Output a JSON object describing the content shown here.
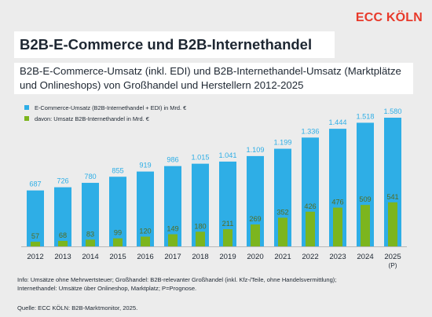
{
  "header": {
    "brand": "ECC KÖLN",
    "title": "B2B-E-Commerce und B2B-Internethandel",
    "subtitle": "B2B-E-Commerce-Umsatz (inkl. EDI) und B2B-Internethandel-Umsatz (Marktplätze und Onlineshops) von Großhandel und Herstellern 2012-2025"
  },
  "colors": {
    "ecommerce": "#2eaee6",
    "internethandel": "#7cb51e",
    "label_ecommerce": "#2eaee6",
    "label_internethandel": "#556b1c"
  },
  "chart_data": {
    "type": "bar",
    "categories": [
      "2012",
      "2013",
      "2014",
      "2015",
      "2016",
      "2017",
      "2018",
      "2019",
      "2020",
      "2021",
      "2022",
      "2023",
      "2024",
      "2025"
    ],
    "category_notes": [
      "",
      "",
      "",
      "",
      "",
      "",
      "",
      "",
      "",
      "",
      "",
      "",
      "",
      "(P)"
    ],
    "series": [
      {
        "name": "E-Commerce-Umsatz (B2B-Internethandel + EDI) in Mrd. €",
        "values": [
          687,
          726,
          780,
          855,
          919,
          986,
          1015,
          1041,
          1109,
          1199,
          1336,
          1444,
          1518,
          1580
        ],
        "labels": [
          "687",
          "726",
          "780",
          "855",
          "919",
          "986",
          "1.015",
          "1.041",
          "1.109",
          "1.199",
          "1.336",
          "1.444",
          "1.518",
          "1.580"
        ]
      },
      {
        "name": "davon: Umsatz B2B-Internethandel in Mrd. €",
        "values": [
          57,
          68,
          83,
          99,
          120,
          149,
          180,
          211,
          269,
          352,
          426,
          476,
          509,
          541
        ],
        "labels": [
          "57",
          "68",
          "83",
          "99",
          "120",
          "149",
          "180",
          "211",
          "269",
          "352",
          "426",
          "476",
          "509",
          "541"
        ]
      }
    ],
    "ylim": [
      0,
      1580
    ],
    "grid": false,
    "legend": "top-left"
  },
  "footer": {
    "note_line1": "Info: Umsätze ohne Mehrwertsteuer; Großhandel: B2B-relevanter Großhandel (inkl. Kfz-/Teile, ohne Handelsvermittlung);",
    "note_line2": "Internethandel: Umsätze über Onlineshop, Marktplatz; P=Prognose.",
    "source": "Quelle: ECC KÖLN: B2B-Marktmonitor, 2025."
  }
}
